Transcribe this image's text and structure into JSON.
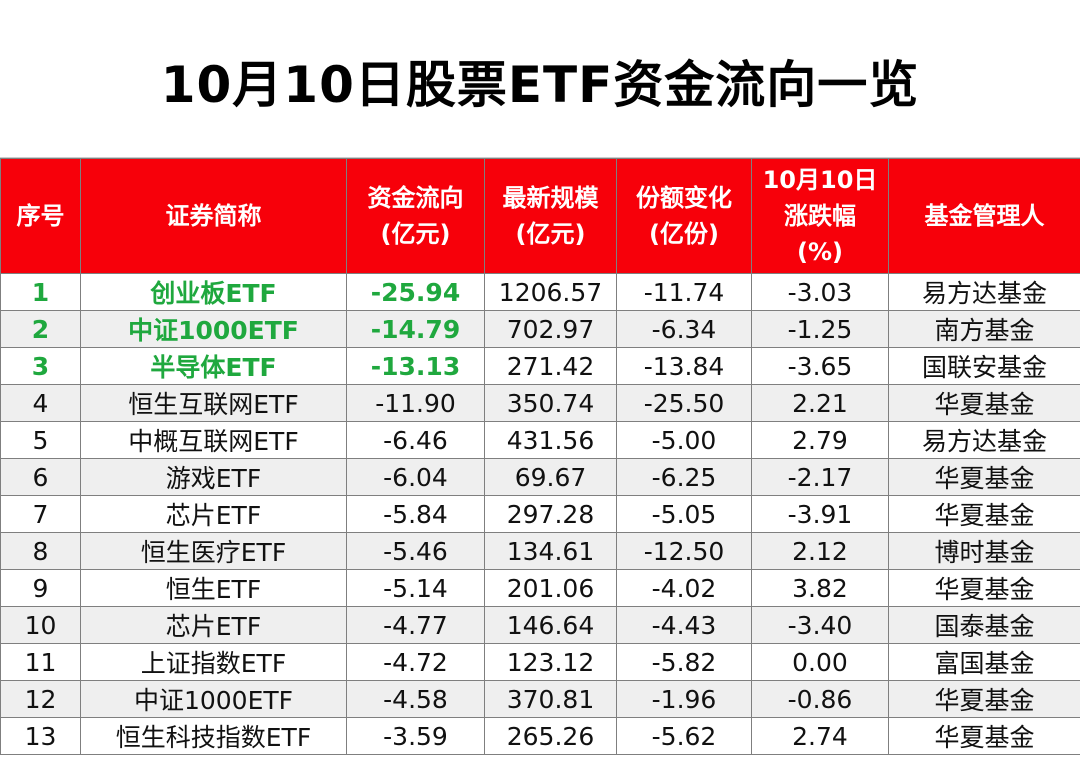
{
  "title": "10月10日股票ETF资金流向一览",
  "colors": {
    "header_bg": "#f7000a",
    "header_text": "#ffffff",
    "top_green": "#1fa83e",
    "row_alt": "#efefef"
  },
  "headers": {
    "rank": [
      "序号"
    ],
    "name": [
      "证券简称"
    ],
    "flow": [
      "资金流向",
      "(亿元)"
    ],
    "scale": [
      "最新规模",
      "(亿元)"
    ],
    "share": [
      "份额变化",
      "(亿份)"
    ],
    "change": [
      "10月10日",
      "涨跌幅",
      "(%)"
    ],
    "manager": [
      "基金管理人"
    ]
  },
  "rows": [
    {
      "rank": "1",
      "name": "创业板ETF",
      "flow": "-25.94",
      "scale": "1206.57",
      "share": "-11.74",
      "change": "-3.03",
      "manager": "易方达基金"
    },
    {
      "rank": "2",
      "name": "中证1000ETF",
      "flow": "-14.79",
      "scale": "702.97",
      "share": "-6.34",
      "change": "-1.25",
      "manager": "南方基金"
    },
    {
      "rank": "3",
      "name": "半导体ETF",
      "flow": "-13.13",
      "scale": "271.42",
      "share": "-13.84",
      "change": "-3.65",
      "manager": "国联安基金"
    },
    {
      "rank": "4",
      "name": "恒生互联网ETF",
      "flow": "-11.90",
      "scale": "350.74",
      "share": "-25.50",
      "change": "2.21",
      "manager": "华夏基金"
    },
    {
      "rank": "5",
      "name": "中概互联网ETF",
      "flow": "-6.46",
      "scale": "431.56",
      "share": "-5.00",
      "change": "2.79",
      "manager": "易方达基金"
    },
    {
      "rank": "6",
      "name": "游戏ETF",
      "flow": "-6.04",
      "scale": "69.67",
      "share": "-6.25",
      "change": "-2.17",
      "manager": "华夏基金"
    },
    {
      "rank": "7",
      "name": "芯片ETF",
      "flow": "-5.84",
      "scale": "297.28",
      "share": "-5.05",
      "change": "-3.91",
      "manager": "华夏基金"
    },
    {
      "rank": "8",
      "name": "恒生医疗ETF",
      "flow": "-5.46",
      "scale": "134.61",
      "share": "-12.50",
      "change": "2.12",
      "manager": "博时基金"
    },
    {
      "rank": "9",
      "name": "恒生ETF",
      "flow": "-5.14",
      "scale": "201.06",
      "share": "-4.02",
      "change": "3.82",
      "manager": "华夏基金"
    },
    {
      "rank": "10",
      "name": "芯片ETF",
      "flow": "-4.77",
      "scale": "146.64",
      "share": "-4.43",
      "change": "-3.40",
      "manager": "国泰基金"
    },
    {
      "rank": "11",
      "name": "上证指数ETF",
      "flow": "-4.72",
      "scale": "123.12",
      "share": "-5.82",
      "change": "0.00",
      "manager": "富国基金"
    },
    {
      "rank": "12",
      "name": "中证1000ETF",
      "flow": "-4.58",
      "scale": "370.81",
      "share": "-1.96",
      "change": "-0.86",
      "manager": "华夏基金"
    },
    {
      "rank": "13",
      "name": "恒生科技指数ETF",
      "flow": "-3.59",
      "scale": "265.26",
      "share": "-5.62",
      "change": "2.74",
      "manager": "华夏基金"
    }
  ]
}
